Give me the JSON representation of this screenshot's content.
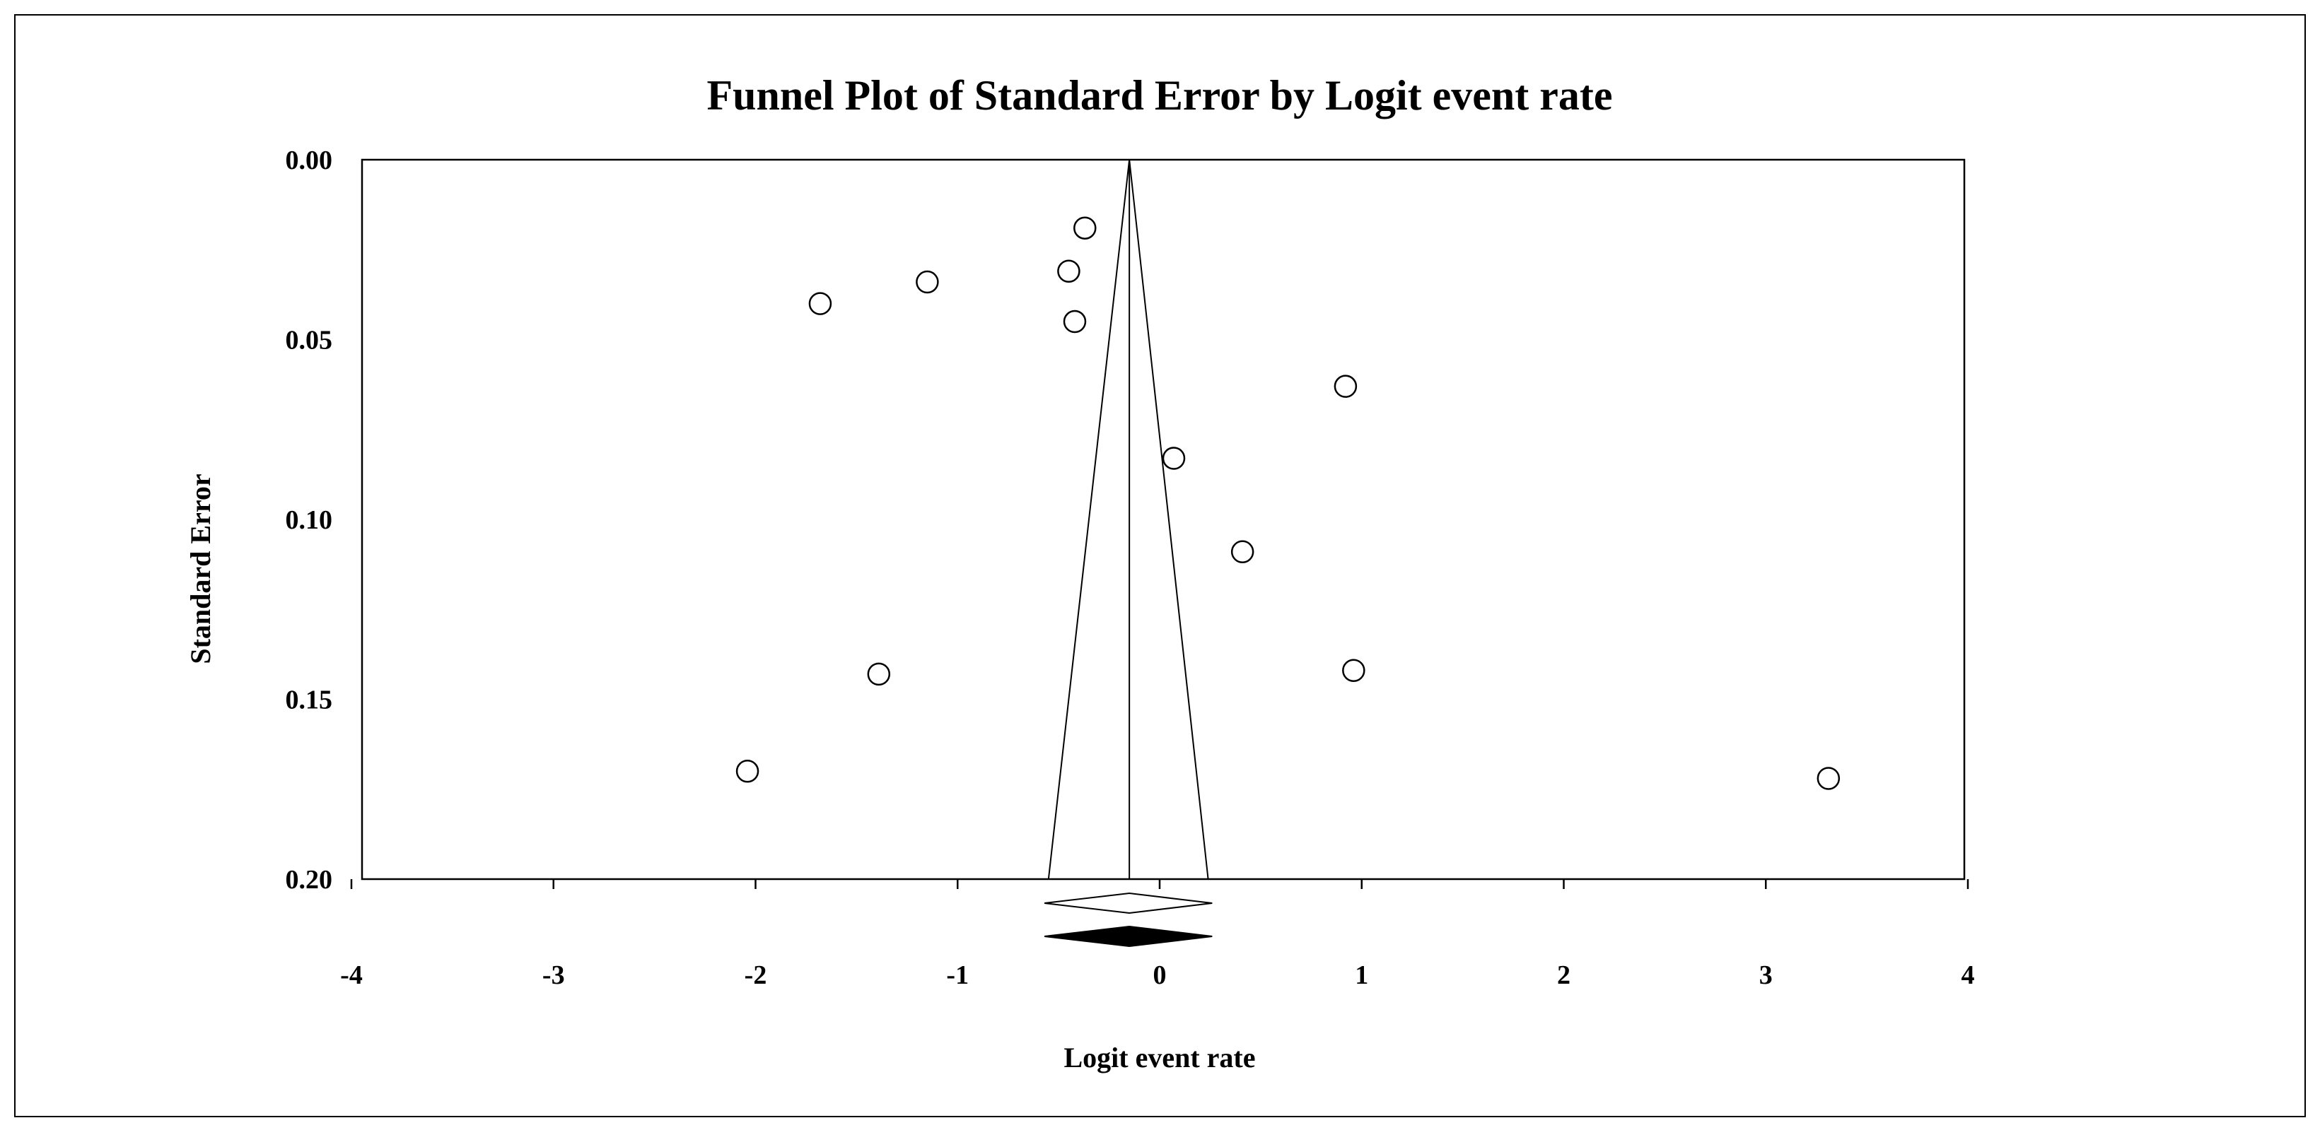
{
  "chart_data": {
    "type": "scatter",
    "title": "Funnel Plot of Standard Error by Logit event rate",
    "xlabel": "Logit event rate",
    "ylabel": "Standard Error",
    "xlim": [
      -4,
      4
    ],
    "ylim": [
      0,
      0.2
    ],
    "y_inverted": true,
    "x_ticks": [
      -4,
      -3,
      -2,
      -1,
      0,
      1,
      2,
      3,
      4
    ],
    "y_ticks": [
      0.0,
      0.05,
      0.1,
      0.15,
      0.2
    ],
    "x_tick_labels": [
      "-4",
      "-3",
      "-2",
      "-1",
      "0",
      "1",
      "2",
      "3",
      "4"
    ],
    "y_tick_labels": [
      "0.00",
      "0.05",
      "0.10",
      "0.15",
      "0.20"
    ],
    "grid": false,
    "legend": "none",
    "pooled_estimate": -0.15,
    "funnel_limits_at_0_20": [
      -0.55,
      0.24
    ],
    "summary_diamonds": [
      {
        "style": "open",
        "center": -0.15,
        "lower": -0.57,
        "upper": 0.26
      },
      {
        "style": "filled",
        "center": -0.15,
        "lower": -0.57,
        "upper": 0.26
      }
    ],
    "series": [
      {
        "points": [
          {
            "x": -0.37,
            "y": 0.019
          },
          {
            "x": -0.45,
            "y": 0.031
          },
          {
            "x": -1.15,
            "y": 0.034
          },
          {
            "x": -1.68,
            "y": 0.04
          },
          {
            "x": -0.42,
            "y": 0.045
          },
          {
            "x": 0.92,
            "y": 0.063
          },
          {
            "x": 0.07,
            "y": 0.083
          },
          {
            "x": 0.41,
            "y": 0.109
          },
          {
            "x": 0.96,
            "y": 0.142
          },
          {
            "x": -1.39,
            "y": 0.143
          },
          {
            "x": -2.04,
            "y": 0.17
          },
          {
            "x": 3.31,
            "y": 0.172
          }
        ]
      }
    ],
    "colors": {
      "marker_fill": "#ffffff",
      "marker_stroke": "#000000",
      "axis": "#000000",
      "diamond_filled": "#000000"
    }
  }
}
